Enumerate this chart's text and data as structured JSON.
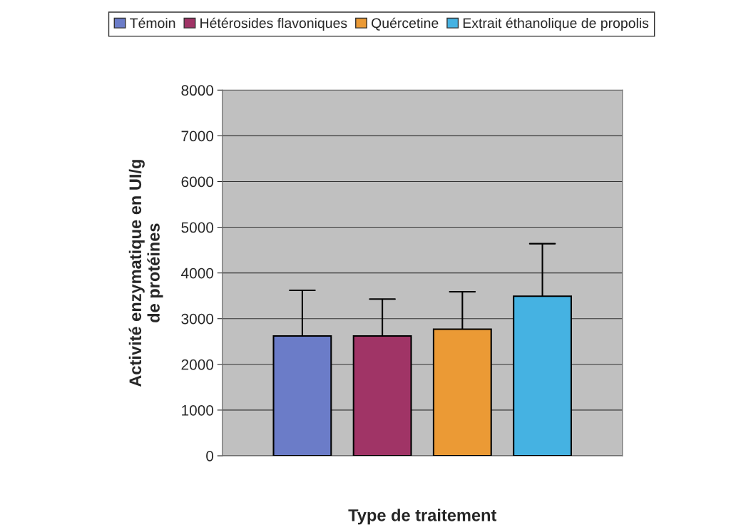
{
  "chart_data": {
    "type": "bar",
    "xlabel": "Type de traitement",
    "ylabel": "Activité enzymatique en UI/g\nde protéines",
    "categories": [
      null
    ],
    "series": [
      {
        "name": "Témoin",
        "color": "#6b7cc8",
        "values": [
          2620
        ],
        "errors": [
          [
            2620,
            3620
          ]
        ]
      },
      {
        "name": "Hétérosides flavoniques",
        "color": "#a03466",
        "values": [
          2620
        ],
        "errors": [
          [
            2620,
            3430
          ]
        ]
      },
      {
        "name": "Quércetine",
        "color": "#eb9a35",
        "values": [
          2770
        ],
        "errors": [
          [
            2770,
            3590
          ]
        ]
      },
      {
        "name": "Extrait éthanolique de propolis",
        "color": "#45b2e2",
        "values": [
          3490
        ],
        "errors": [
          [
            3490,
            4640
          ]
        ]
      }
    ],
    "ylim": [
      0,
      8000
    ],
    "yticks": [
      0,
      1000,
      2000,
      3000,
      4000,
      5000,
      6000,
      7000,
      8000
    ],
    "grid": "y",
    "legend": "top"
  }
}
